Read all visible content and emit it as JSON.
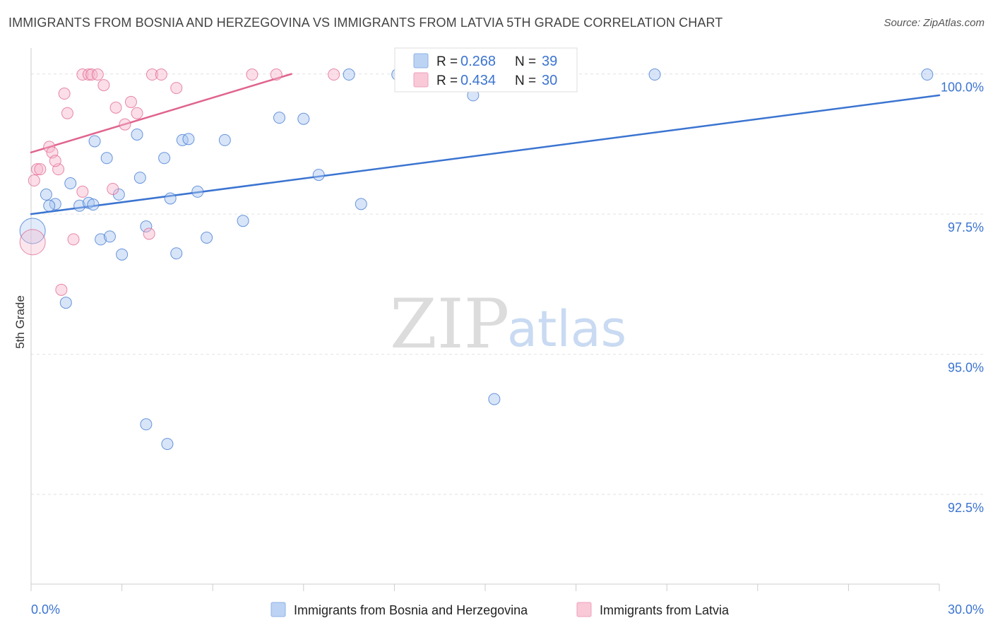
{
  "title": "IMMIGRANTS FROM BOSNIA AND HERZEGOVINA VS IMMIGRANTS FROM LATVIA 5TH GRADE CORRELATION CHART",
  "source": "Source: ZipAtlas.com",
  "watermark": {
    "zip": "ZIP",
    "atlas": "atlas"
  },
  "legend_box": {
    "rows": [
      {
        "r_label": "R =",
        "r_value": "0.268",
        "n_label": "N =",
        "n_value": "39"
      },
      {
        "r_label": "R =",
        "r_value": "0.434",
        "n_label": "N =",
        "n_value": "30"
      }
    ]
  },
  "colors": {
    "blue": "#3b74d1",
    "blue_fill": "#a9c6f0",
    "pink": "#e0648f",
    "pink_fill": "#f6b6cb",
    "grid": "#e2e2e2"
  },
  "chart_data": {
    "type": "scatter",
    "title": "IMMIGRANTS FROM BOSNIA AND HERZEGOVINA VS IMMIGRANTS FROM LATVIA 5TH GRADE CORRELATION CHART",
    "xlabel": "",
    "ylabel": "5th Grade",
    "xlim": [
      0.0,
      30.0
    ],
    "ylim": [
      90.9,
      100.4
    ],
    "x_tick_labels": [
      "0.0%",
      "30.0%"
    ],
    "y_ticks": [
      100.0,
      97.5,
      95.0,
      92.5
    ],
    "y_tick_labels": [
      "100.0%",
      "97.5%",
      "95.0%",
      "92.5%"
    ],
    "grid": true,
    "legend": "bottom-center",
    "series": [
      {
        "name": "Immigrants from Bosnia and Herzegovina",
        "color": "blue",
        "R": 0.268,
        "N": 39,
        "trend": {
          "x": [
            0.0,
            30.0
          ],
          "y": [
            97.5,
            99.62
          ]
        },
        "points": [
          [
            0.05,
            97.2
          ],
          [
            0.5,
            97.85
          ],
          [
            0.8,
            97.68
          ],
          [
            1.3,
            98.05
          ],
          [
            1.6,
            97.65
          ],
          [
            1.9,
            97.7
          ],
          [
            2.1,
            98.8
          ],
          [
            2.3,
            97.05
          ],
          [
            2.5,
            98.5
          ],
          [
            2.6,
            97.1
          ],
          [
            2.9,
            97.85
          ],
          [
            3.0,
            96.78
          ],
          [
            3.5,
            98.92
          ],
          [
            3.6,
            98.15
          ],
          [
            3.8,
            97.28
          ],
          [
            4.4,
            98.5
          ],
          [
            4.6,
            97.78
          ],
          [
            4.8,
            96.8
          ],
          [
            5.0,
            98.82
          ],
          [
            5.2,
            98.84
          ],
          [
            5.5,
            97.9
          ],
          [
            5.8,
            97.08
          ],
          [
            6.4,
            98.82
          ],
          [
            7.0,
            97.38
          ],
          [
            8.2,
            99.22
          ],
          [
            9.0,
            99.2
          ],
          [
            9.5,
            98.2
          ],
          [
            10.5,
            99.99
          ],
          [
            10.9,
            97.68
          ],
          [
            12.1,
            99.99
          ],
          [
            14.6,
            99.62
          ],
          [
            20.6,
            99.99
          ],
          [
            29.6,
            99.99
          ],
          [
            1.15,
            95.92
          ],
          [
            3.8,
            93.75
          ],
          [
            4.5,
            93.4
          ],
          [
            15.3,
            94.2
          ],
          [
            0.6,
            97.65
          ],
          [
            2.05,
            97.67
          ]
        ]
      },
      {
        "name": "Immigrants from Latvia",
        "color": "pink",
        "R": 0.434,
        "N": 30,
        "trend": {
          "x": [
            0.0,
            8.6
          ],
          "y": [
            98.6,
            100.0
          ]
        },
        "points": [
          [
            0.05,
            97.0
          ],
          [
            0.1,
            98.1
          ],
          [
            0.2,
            98.3
          ],
          [
            0.3,
            98.3
          ],
          [
            0.6,
            98.7
          ],
          [
            0.7,
            98.6
          ],
          [
            0.9,
            98.3
          ],
          [
            0.8,
            98.45
          ],
          [
            1.0,
            96.15
          ],
          [
            1.1,
            99.65
          ],
          [
            1.2,
            99.3
          ],
          [
            1.4,
            97.05
          ],
          [
            1.7,
            97.9
          ],
          [
            1.7,
            99.99
          ],
          [
            1.9,
            99.99
          ],
          [
            2.0,
            99.99
          ],
          [
            2.2,
            99.99
          ],
          [
            2.4,
            99.8
          ],
          [
            2.7,
            97.95
          ],
          [
            2.8,
            99.4
          ],
          [
            3.1,
            99.1
          ],
          [
            3.3,
            99.5
          ],
          [
            3.5,
            99.3
          ],
          [
            4.0,
            99.99
          ],
          [
            4.3,
            99.99
          ],
          [
            3.9,
            97.15
          ],
          [
            4.8,
            99.75
          ],
          [
            7.3,
            99.99
          ],
          [
            8.1,
            99.99
          ],
          [
            10.0,
            99.99
          ]
        ]
      }
    ]
  }
}
